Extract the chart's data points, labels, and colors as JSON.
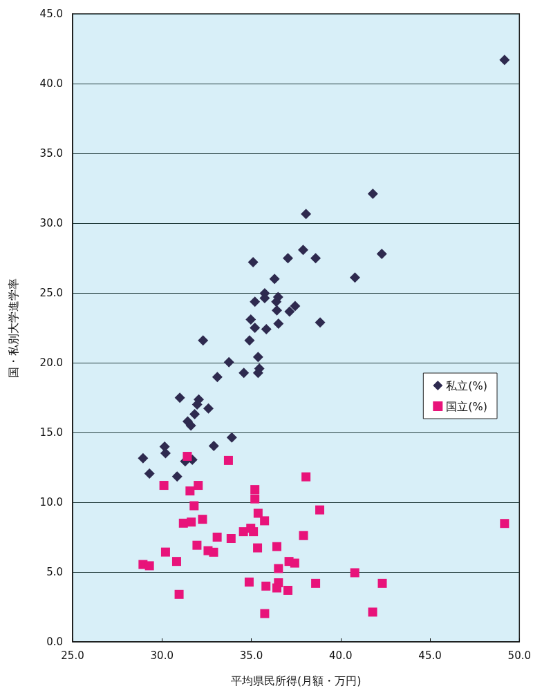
{
  "chart_data": {
    "type": "scatter",
    "xlabel": "平均県民所得(月額・万円)",
    "ylabel": "国・私別大学進学率",
    "xlim": [
      25,
      50
    ],
    "xticks": [
      {
        "value": 25,
        "label": "25.0"
      },
      {
        "value": 30,
        "label": "30.0"
      },
      {
        "value": 35,
        "label": "35.0"
      },
      {
        "value": 40,
        "label": "40.0"
      },
      {
        "value": 45,
        "label": "45.0"
      },
      {
        "value": 50,
        "label": "50.0"
      }
    ],
    "ylim": [
      0,
      45
    ],
    "yticks": [
      {
        "value": 0,
        "label": "0.0"
      },
      {
        "value": 5,
        "label": "5.0"
      },
      {
        "value": 10,
        "label": "10.0"
      },
      {
        "value": 15,
        "label": "15.0"
      },
      {
        "value": 20,
        "label": "20.0"
      },
      {
        "value": 25,
        "label": "25.0"
      },
      {
        "value": 30,
        "label": "30.0"
      },
      {
        "value": 35,
        "label": "35.0"
      },
      {
        "value": 40,
        "label": "40.0"
      },
      {
        "value": 45,
        "label": "45.0"
      }
    ],
    "grid": "y",
    "legend": "right",
    "series": [
      {
        "name": "私立(%)",
        "color": "#2e2a4f",
        "marker": "diamond",
        "x": [
          49.17,
          41.8,
          38.06,
          37.9,
          37.05,
          38.6,
          42.3,
          35.1,
          36.3,
          40.8,
          35.75,
          35.75,
          36.5,
          36.4,
          35.2,
          37.45,
          37.14,
          36.43,
          34.97,
          38.85,
          35.2,
          35.84,
          36.52,
          32.3,
          34.9,
          35.38,
          33.75,
          35.45,
          35.38,
          34.58,
          33.1,
          31.0,
          32.06,
          31.97,
          32.6,
          31.83,
          31.44,
          31.62,
          33.91,
          32.9,
          30.15,
          30.2,
          28.94,
          31.3,
          31.7,
          29.3,
          30.85
        ],
        "values": [
          41.7,
          32.1,
          30.65,
          28.08,
          27.49,
          27.49,
          27.8,
          27.2,
          26.0,
          26.1,
          24.98,
          24.63,
          24.7,
          24.37,
          24.37,
          24.06,
          23.66,
          23.75,
          23.09,
          22.88,
          22.5,
          22.4,
          22.8,
          21.6,
          21.6,
          20.41,
          20.04,
          19.58,
          19.27,
          19.27,
          18.97,
          17.49,
          17.36,
          17.0,
          16.72,
          16.31,
          15.79,
          15.49,
          14.64,
          14.03,
          13.98,
          13.52,
          13.15,
          12.93,
          13.05,
          12.06,
          11.85
        ]
      },
      {
        "name": "国立(%)",
        "color": "#e8137a",
        "marker": "square",
        "x": [
          49.17,
          31.42,
          33.72,
          38.06,
          30.11,
          32.03,
          31.57,
          35.2,
          35.2,
          31.8,
          38.83,
          35.38,
          35.74,
          31.2,
          31.64,
          32.27,
          34.56,
          34.97,
          35.12,
          33.09,
          33.87,
          37.92,
          31.96,
          35.35,
          36.43,
          32.58,
          32.89,
          30.2,
          30.82,
          28.94,
          29.3,
          37.11,
          37.43,
          36.52,
          40.79,
          34.88,
          38.6,
          42.33,
          35.82,
          36.25,
          36.52,
          36.43,
          37.05,
          30.96,
          35.75,
          41.79
        ],
        "values": [
          8.48,
          13.29,
          13.0,
          11.82,
          11.21,
          11.21,
          10.81,
          10.91,
          10.24,
          9.75,
          9.45,
          9.21,
          8.67,
          8.5,
          8.58,
          8.78,
          7.89,
          8.14,
          7.89,
          7.5,
          7.4,
          7.61,
          6.92,
          6.73,
          6.82,
          6.53,
          6.42,
          6.43,
          5.76,
          5.54,
          5.45,
          5.76,
          5.64,
          5.25,
          4.95,
          4.28,
          4.19,
          4.19,
          3.99,
          null,
          4.23,
          3.86,
          3.69,
          3.4,
          2.02,
          2.13
        ]
      }
    ]
  }
}
